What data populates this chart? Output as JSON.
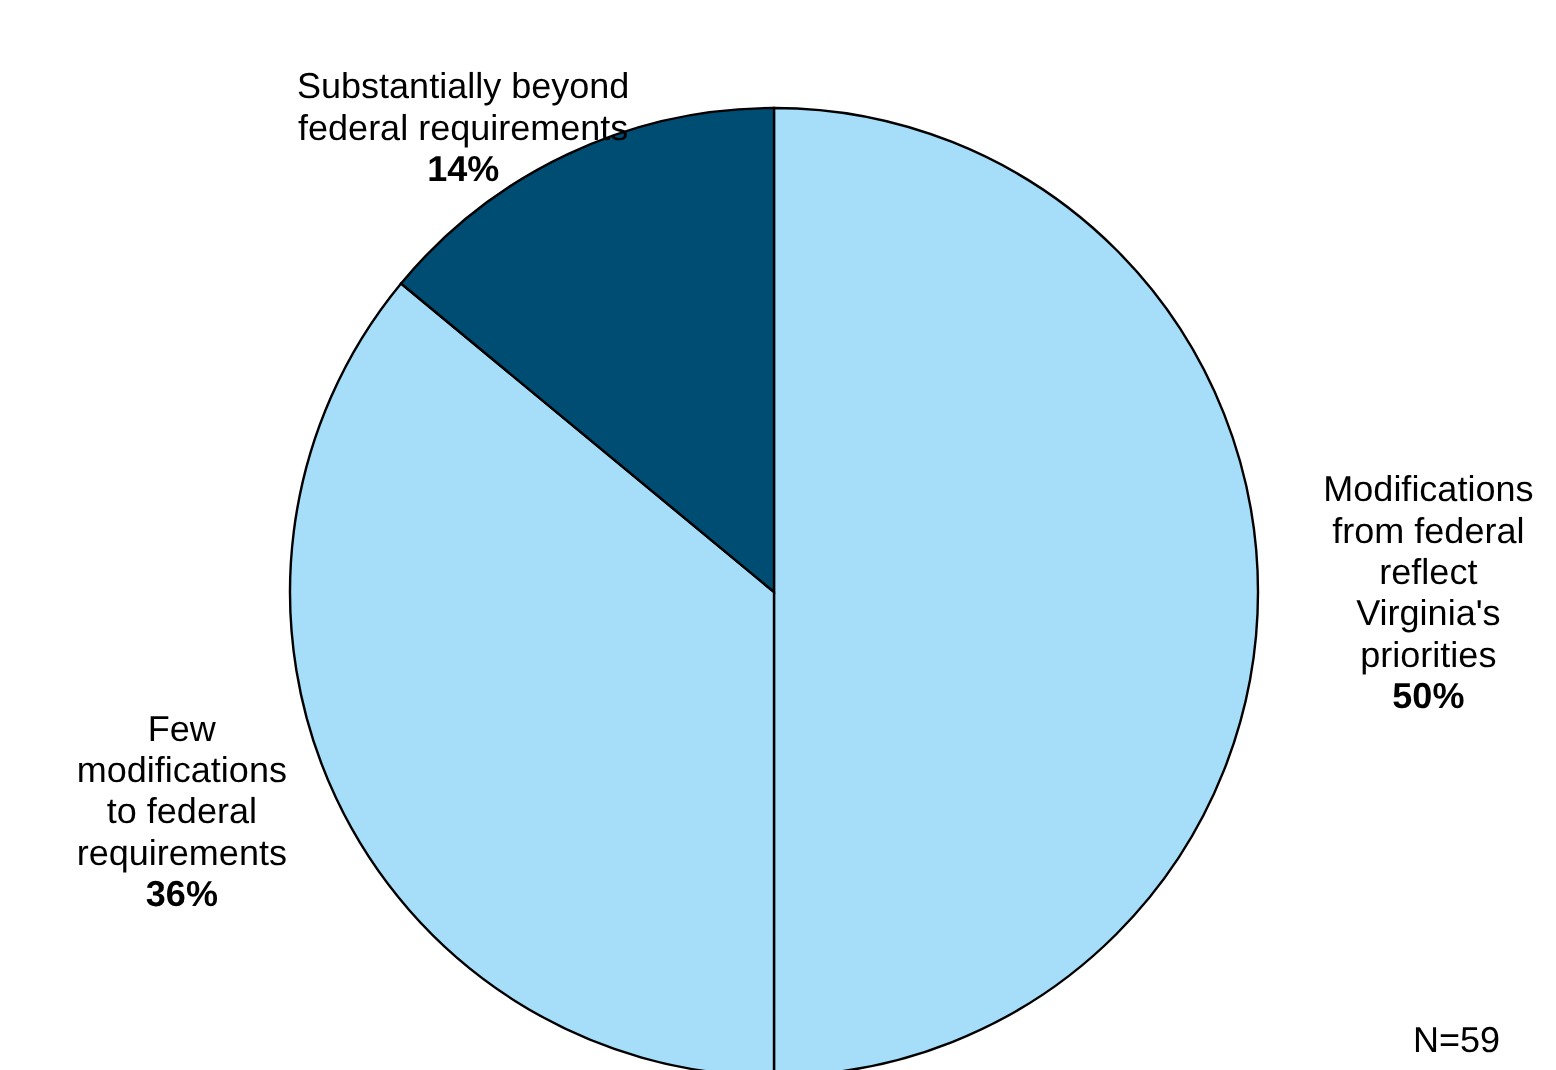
{
  "chart_data": {
    "type": "pie",
    "categories": [
      "Modifications\nfrom federal\nreflect\nVirginia's\npriorities",
      "Few\nmodifications\nto federal\nrequirements",
      "Substantially beyond\nfederal requirements"
    ],
    "values": [
      50,
      36,
      14
    ],
    "value_labels": [
      "50%",
      "36%",
      "14%"
    ],
    "colors": [
      "#a6ddf8",
      "#a6ddf8",
      "#004d73"
    ],
    "annotations": [
      "N=59"
    ]
  }
}
